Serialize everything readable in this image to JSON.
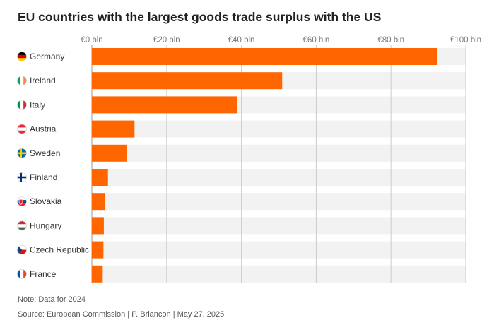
{
  "chart_data": {
    "type": "bar",
    "orientation": "horizontal",
    "title": "EU countries with the largest goods trade surplus with the US",
    "categories": [
      "Germany",
      "Ireland",
      "Italy",
      "Austria",
      "Sweden",
      "Finland",
      "Slovakia",
      "Hungary",
      "Czech Republic",
      "France"
    ],
    "values": [
      92.3,
      50.9,
      38.8,
      11.4,
      9.3,
      4.3,
      3.6,
      3.2,
      3.1,
      2.9
    ],
    "value_unit": "€ bln",
    "xlim": [
      0,
      100
    ],
    "x_ticks": [
      "€0 bln",
      "€20 bln",
      "€40 bln",
      "€60 bln",
      "€80 bln",
      "€100 bln"
    ],
    "x_tick_values": [
      0,
      20,
      40,
      60,
      80,
      100
    ],
    "axis_position": "top",
    "grid": true,
    "bar_color": "#ff6600",
    "track_color": "#f2f2f2",
    "grid_color": "#cccccc",
    "flag_icons": [
      "germany-flag-icon",
      "ireland-flag-icon",
      "italy-flag-icon",
      "austria-flag-icon",
      "sweden-flag-icon",
      "finland-flag-icon",
      "slovakia-flag-icon",
      "hungary-flag-icon",
      "czech-republic-flag-icon",
      "france-flag-icon"
    ]
  },
  "footer": {
    "note": "Note: Data for 2024",
    "source": "Source: European Commission | P. Briancon | May 27, 2025"
  }
}
